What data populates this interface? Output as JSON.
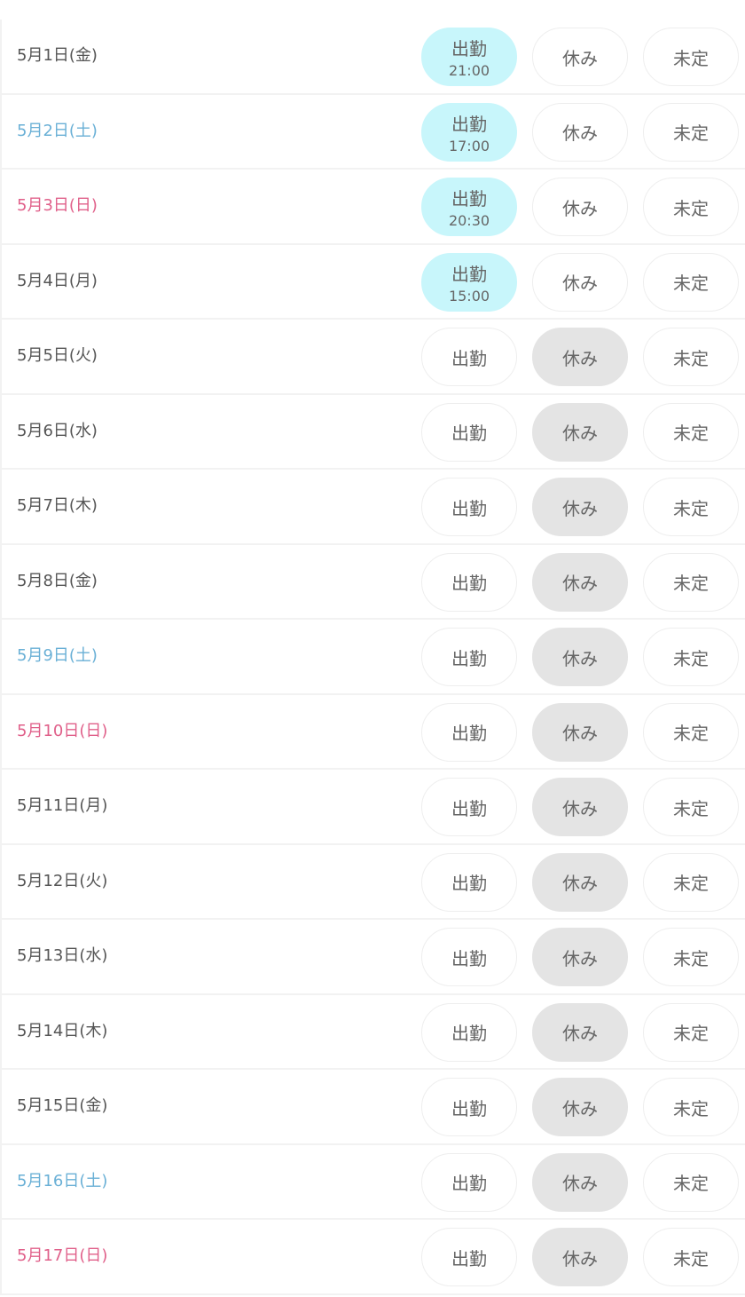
{
  "labels": {
    "work": "出勤",
    "rest": "休み",
    "undecided": "未定"
  },
  "colors": {
    "weekday": "#555555",
    "saturday": "#6ab0d6",
    "sunday": "#e0608a",
    "work_selected": "#c8f6fb",
    "rest_selected": "#e4e4e4"
  },
  "days": [
    {
      "date": "5月1日(金)",
      "type": "weekday",
      "status": "work",
      "time": "21:00"
    },
    {
      "date": "5月2日(土)",
      "type": "sat",
      "status": "work",
      "time": "17:00"
    },
    {
      "date": "5月3日(日)",
      "type": "sun",
      "status": "work",
      "time": "20:30"
    },
    {
      "date": "5月4日(月)",
      "type": "weekday",
      "status": "work",
      "time": "15:00"
    },
    {
      "date": "5月5日(火)",
      "type": "weekday",
      "status": "rest"
    },
    {
      "date": "5月6日(水)",
      "type": "weekday",
      "status": "rest"
    },
    {
      "date": "5月7日(木)",
      "type": "weekday",
      "status": "rest"
    },
    {
      "date": "5月8日(金)",
      "type": "weekday",
      "status": "rest"
    },
    {
      "date": "5月9日(土)",
      "type": "sat",
      "status": "rest"
    },
    {
      "date": "5月10日(日)",
      "type": "sun",
      "status": "rest"
    },
    {
      "date": "5月11日(月)",
      "type": "weekday",
      "status": "rest"
    },
    {
      "date": "5月12日(火)",
      "type": "weekday",
      "status": "rest"
    },
    {
      "date": "5月13日(水)",
      "type": "weekday",
      "status": "rest"
    },
    {
      "date": "5月14日(木)",
      "type": "weekday",
      "status": "rest"
    },
    {
      "date": "5月15日(金)",
      "type": "weekday",
      "status": "rest"
    },
    {
      "date": "5月16日(土)",
      "type": "sat",
      "status": "rest"
    },
    {
      "date": "5月17日(日)",
      "type": "sun",
      "status": "rest"
    }
  ]
}
